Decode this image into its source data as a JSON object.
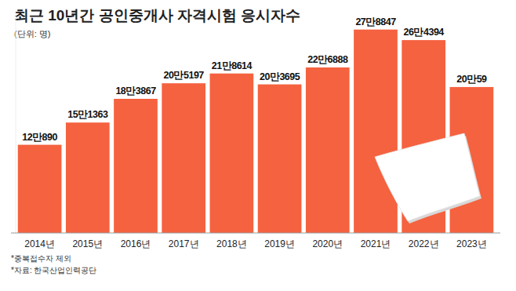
{
  "chart_data": {
    "type": "bar",
    "title": "최근 10년간 공인중개사 자격시험 응시자수",
    "subtitle": "(단위: 명)",
    "categories": [
      "2014년",
      "2015년",
      "2016년",
      "2017년",
      "2018년",
      "2019년",
      "2020년",
      "2021년",
      "2022년",
      "2023년"
    ],
    "values": [
      120890,
      151363,
      183867,
      205197,
      218614,
      203695,
      226888,
      278847,
      264394,
      200059
    ],
    "value_labels": [
      "12만890",
      "15만1363",
      "18만3867",
      "20만5197",
      "21만8614",
      "20만3695",
      "22만6888",
      "27만8847",
      "26만4394",
      "20만59"
    ],
    "color": "#f5623f",
    "ylim": [
      0,
      300000
    ],
    "grid": false,
    "data_labels": true,
    "tick_labels": "x",
    "annotations": [
      "*중복접수자 제외",
      "*자료: 한국산업인력공단"
    ]
  }
}
